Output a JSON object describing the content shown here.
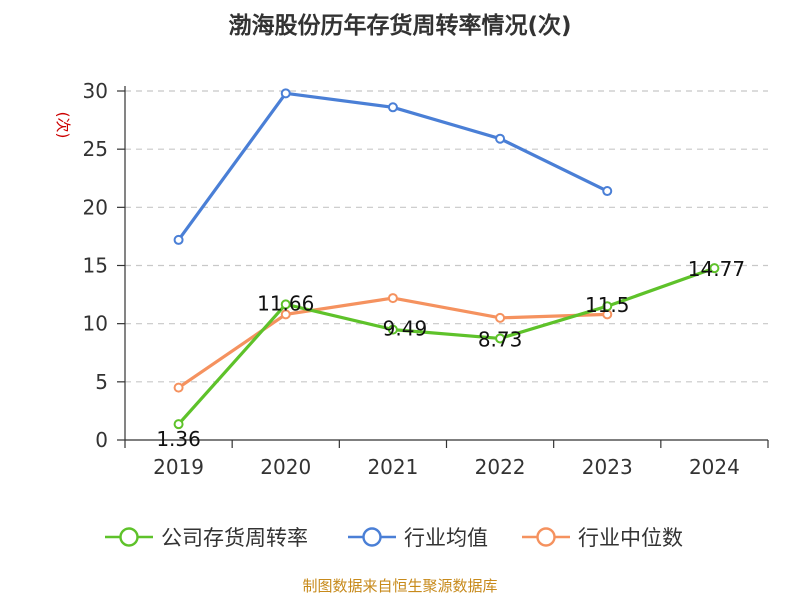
{
  "chart_data": {
    "type": "line",
    "title": "渤海股份历年存货周转率情况(次)",
    "ylabel": "(次)",
    "xlabel": "",
    "categories": [
      "2019",
      "2020",
      "2021",
      "2022",
      "2023",
      "2024"
    ],
    "ylim": [
      0,
      30
    ],
    "yticks": [
      0,
      5,
      10,
      15,
      20,
      25,
      30
    ],
    "grid": true,
    "legend_position": "bottom",
    "series": [
      {
        "name": "公司存货周转率",
        "color": "#5ec22a",
        "values": [
          1.36,
          11.66,
          9.49,
          8.73,
          11.5,
          14.77
        ],
        "labels": [
          "1.36",
          "11.66",
          "9.49",
          "8.73",
          "11.5",
          "14.77"
        ]
      },
      {
        "name": "行业均值",
        "color": "#4a7fd6",
        "values": [
          17.2,
          29.8,
          28.6,
          25.9,
          21.4,
          null
        ]
      },
      {
        "name": "行业中位数",
        "color": "#f5925f",
        "values": [
          4.5,
          10.8,
          12.2,
          10.5,
          10.8,
          null
        ]
      }
    ],
    "source": "制图数据来自恒生聚源数据库"
  }
}
